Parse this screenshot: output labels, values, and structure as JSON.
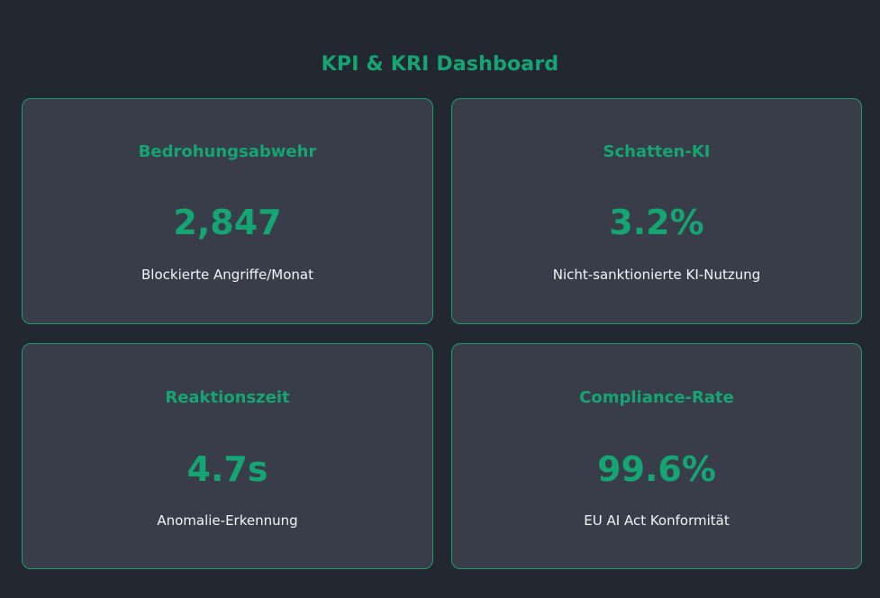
{
  "dashboard": {
    "title": "KPI & KRI Dashboard"
  },
  "cards": [
    {
      "title": "Bedrohungsabwehr",
      "value": "2,847",
      "description": "Blockierte Angriffe/Monat"
    },
    {
      "title": "Schatten-KI",
      "value": "3.2%",
      "description": "Nicht-sanktionierte KI-Nutzung"
    },
    {
      "title": "Reaktionszeit",
      "value": "4.7s",
      "description": "Anomalie-Erkennung"
    },
    {
      "title": "Compliance-Rate",
      "value": "99.6%",
      "description": "EU AI Act Konformität"
    }
  ],
  "colors": {
    "background": "#232731",
    "card_background": "#393d49",
    "accent": "#14a572",
    "text": "#f2f3f5"
  }
}
